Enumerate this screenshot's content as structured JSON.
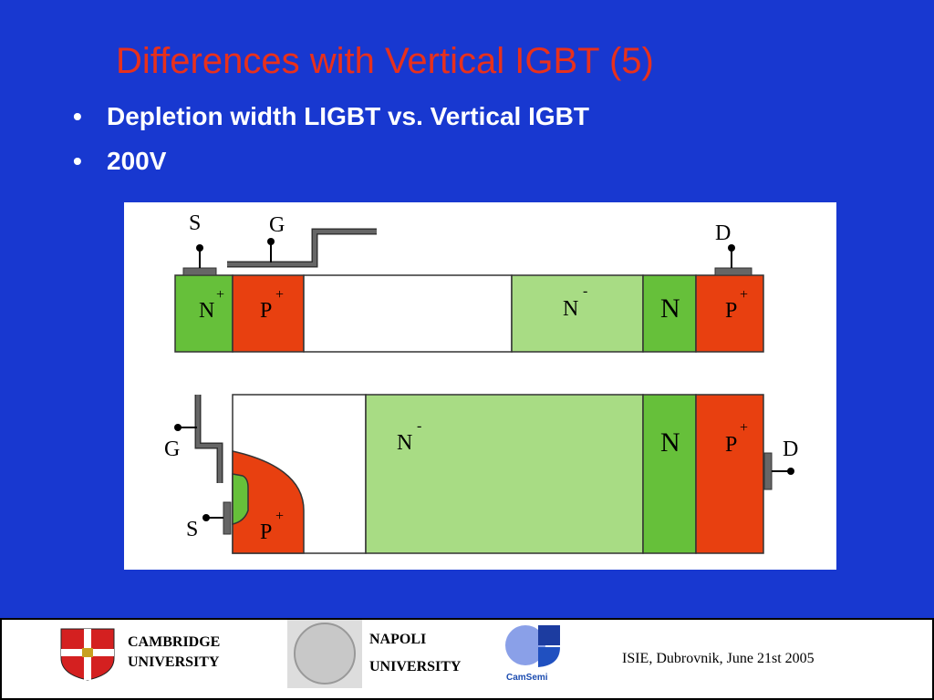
{
  "header": {
    "title": "Differences with Vertical IGBT (5)"
  },
  "bullets": [
    "Depletion width  LIGBT vs. Vertical IGBT",
    "200V"
  ],
  "diagram": {
    "top": {
      "terminals": [
        "S",
        "G",
        "D"
      ],
      "regions": [
        {
          "text": "N",
          "sup": "+"
        },
        {
          "text": "P",
          "sup": "+"
        },
        {
          "text": "N",
          "sup": "-"
        },
        {
          "text": "N"
        },
        {
          "text": "P",
          "sup": "+"
        }
      ]
    },
    "bottom": {
      "terminals": [
        "G",
        "S",
        "D"
      ],
      "regions": [
        {
          "text": "N",
          "sup": "-"
        },
        {
          "text": "N"
        },
        {
          "text": "P",
          "sup": "+"
        },
        {
          "text": "P",
          "sup": "+"
        }
      ]
    }
  },
  "footer": {
    "cambridge": [
      "CAMBRIDGE",
      "UNIVERSITY"
    ],
    "napoli": [
      "NAPOLI",
      "UNIVERSITY"
    ],
    "camsemi": "CamSemi",
    "event": "ISIE,  Dubrovnik, June 21st 2005"
  }
}
